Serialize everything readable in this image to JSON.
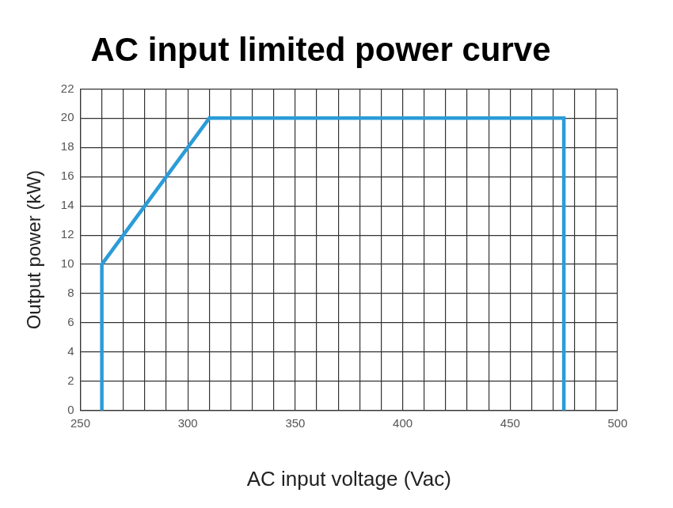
{
  "chart_data": {
    "type": "line",
    "title": "AC input limited power curve",
    "x_label": "AC input voltage (Vac)",
    "y_label": "Output power (kW)",
    "x": [
      260,
      260,
      310,
      475,
      475
    ],
    "values": [
      0,
      10,
      20,
      20,
      0
    ],
    "color": "#2b9cd8",
    "xlim": [
      250,
      500
    ],
    "xticks": [
      250,
      300,
      350,
      400,
      450,
      500
    ],
    "ylim": [
      0,
      22
    ],
    "yticks": [
      0,
      2,
      4,
      6,
      8,
      10,
      12,
      14,
      16,
      18,
      20,
      22
    ],
    "grid": true
  }
}
